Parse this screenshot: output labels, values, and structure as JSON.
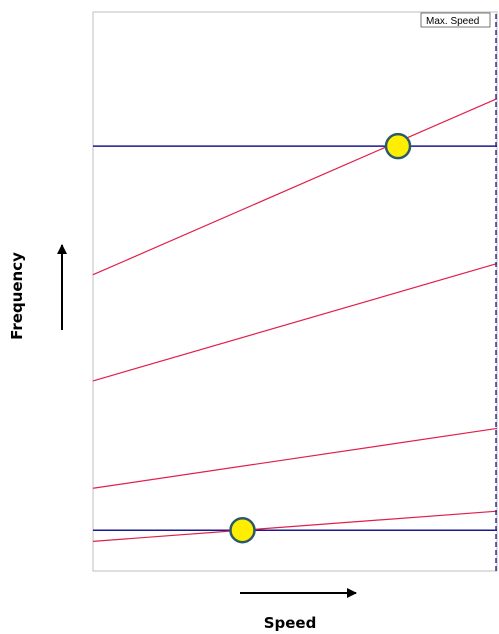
{
  "chart_data": {
    "type": "line",
    "title": "",
    "xlabel": "Speed",
    "ylabel": "Frequency",
    "xlim": [
      0,
      1
    ],
    "ylim": [
      0,
      1
    ],
    "grid": false,
    "colors": {
      "natural_frequency": "#1a1a8c",
      "excitation": "#e0204a",
      "marker_fill": "#ffee00",
      "marker_stroke": "#2b5a6b",
      "max_speed_line": "#1a1a8c",
      "frame": "#bfbfbf"
    },
    "max_speed": {
      "label": "Max. Speed",
      "x": 1.0
    },
    "horizontal_lines": [
      {
        "y": 0.76
      },
      {
        "y": 0.073
      }
    ],
    "series": [
      {
        "x": [
          0,
          1
        ],
        "y": [
          0.53,
          0.845
        ]
      },
      {
        "x": [
          0,
          1
        ],
        "y": [
          0.34,
          0.55
        ]
      },
      {
        "x": [
          0,
          1
        ],
        "y": [
          0.148,
          0.255
        ]
      },
      {
        "x": [
          0,
          1
        ],
        "y": [
          0.053,
          0.107
        ]
      }
    ],
    "markers": [
      {
        "x": 0.755,
        "y": 0.76
      },
      {
        "x": 0.37,
        "y": 0.073
      }
    ]
  }
}
